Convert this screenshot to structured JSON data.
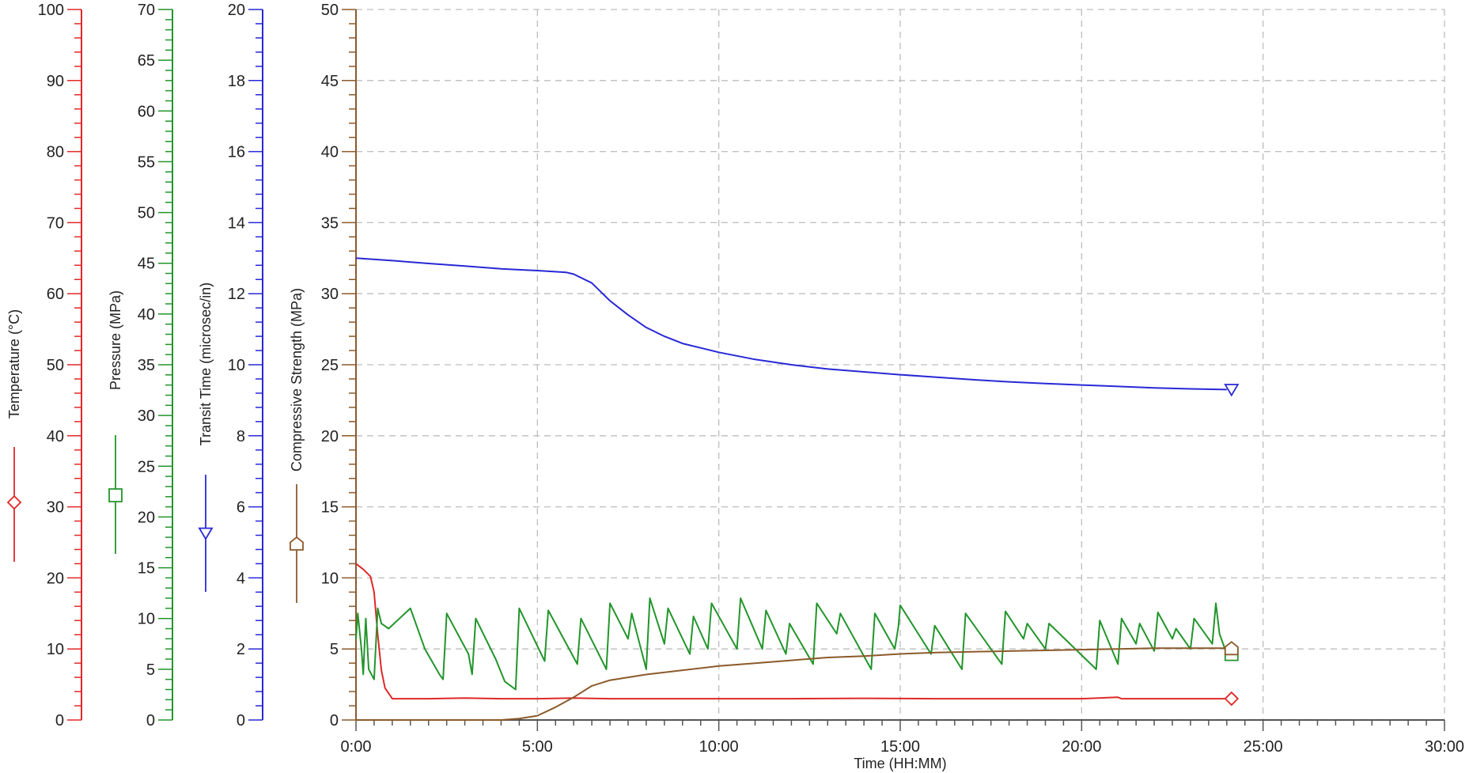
{
  "chart_data": {
    "type": "line",
    "title": "",
    "xlabel": "Time (HH:MM)",
    "x_unit": "hours",
    "xlim": [
      0,
      30
    ],
    "x_tick_labels": [
      "0:00",
      "5:00",
      "10:00",
      "15:00",
      "20:00",
      "25:00",
      "30:00"
    ],
    "grid": true,
    "legend": "left, vertical axis titles",
    "axes": [
      {
        "id": "temp",
        "title": "Temperature (°C)",
        "color": "#e02828",
        "marker": "diamond",
        "ylim": [
          0,
          100
        ],
        "tick_labels": [
          "0",
          "10",
          "20",
          "30",
          "40",
          "50",
          "60",
          "70",
          "80",
          "90",
          "100"
        ]
      },
      {
        "id": "press",
        "title": "Pressure (MPa)",
        "color": "#22952b",
        "marker": "square",
        "ylim": [
          0,
          70
        ],
        "tick_labels": [
          "0",
          "5",
          "10",
          "15",
          "20",
          "25",
          "30",
          "35",
          "40",
          "45",
          "50",
          "55",
          "60",
          "65",
          "70"
        ]
      },
      {
        "id": "transit",
        "title": "Transit Time (microsec/in)",
        "color": "#2828d6",
        "marker": "triangle-down",
        "ylim": [
          0,
          20
        ],
        "tick_labels": [
          "0",
          "2",
          "4",
          "6",
          "8",
          "10",
          "12",
          "14",
          "16",
          "18",
          "20"
        ]
      },
      {
        "id": "strength",
        "title": "Compressive Strength (MPa)",
        "color": "#8b5a2b",
        "marker": "pentagon",
        "ylim": [
          0,
          50
        ],
        "tick_labels": [
          "0",
          "5",
          "10",
          "15",
          "20",
          "25",
          "30",
          "35",
          "40",
          "45",
          "50"
        ]
      }
    ],
    "series": [
      {
        "axis": "transit",
        "color": "#2828d6",
        "points": [
          [
            0,
            13.0
          ],
          [
            1,
            12.93
          ],
          [
            2,
            12.85
          ],
          [
            3,
            12.78
          ],
          [
            4,
            12.7
          ],
          [
            5,
            12.65
          ],
          [
            5.8,
            12.6
          ],
          [
            6,
            12.55
          ],
          [
            6.5,
            12.3
          ],
          [
            7,
            11.8
          ],
          [
            7.5,
            11.4
          ],
          [
            8,
            11.05
          ],
          [
            8.5,
            10.8
          ],
          [
            9,
            10.6
          ],
          [
            10,
            10.35
          ],
          [
            11,
            10.15
          ],
          [
            12,
            10.0
          ],
          [
            13,
            9.88
          ],
          [
            14,
            9.8
          ],
          [
            15,
            9.72
          ],
          [
            16,
            9.65
          ],
          [
            17,
            9.58
          ],
          [
            18,
            9.52
          ],
          [
            19,
            9.47
          ],
          [
            20,
            9.43
          ],
          [
            21,
            9.39
          ],
          [
            22,
            9.35
          ],
          [
            23,
            9.32
          ],
          [
            24,
            9.3
          ]
        ]
      },
      {
        "axis": "temp",
        "color": "#e02828",
        "points": [
          [
            0,
            22
          ],
          [
            0.2,
            21.2
          ],
          [
            0.4,
            20.2
          ],
          [
            0.5,
            18
          ],
          [
            0.6,
            12
          ],
          [
            0.7,
            7
          ],
          [
            0.8,
            4.5
          ],
          [
            1,
            3
          ],
          [
            2,
            3
          ],
          [
            3,
            3.1
          ],
          [
            4,
            3
          ],
          [
            5,
            3
          ],
          [
            6,
            3.1
          ],
          [
            7,
            3
          ],
          [
            8,
            3
          ],
          [
            10,
            3
          ],
          [
            12,
            3
          ],
          [
            14,
            3.05
          ],
          [
            16,
            3
          ],
          [
            18,
            3
          ],
          [
            20,
            3
          ],
          [
            21,
            3.2
          ],
          [
            21.1,
            3
          ],
          [
            22,
            3
          ],
          [
            24,
            3
          ]
        ]
      },
      {
        "axis": "press",
        "color": "#22952b",
        "points": [
          [
            0,
            8
          ],
          [
            0.05,
            10.5
          ],
          [
            0.15,
            7
          ],
          [
            0.2,
            4.5
          ],
          [
            0.27,
            10
          ],
          [
            0.35,
            5
          ],
          [
            0.5,
            4
          ],
          [
            0.6,
            11
          ],
          [
            0.7,
            9.5
          ],
          [
            0.9,
            9
          ],
          [
            1.2,
            10
          ],
          [
            1.5,
            11
          ],
          [
            1.9,
            7
          ],
          [
            2.3,
            4.5
          ],
          [
            2.4,
            4
          ],
          [
            2.5,
            10.5
          ],
          [
            3.1,
            6.5
          ],
          [
            3.2,
            4.5
          ],
          [
            3.3,
            10
          ],
          [
            3.85,
            6
          ],
          [
            4.1,
            3.8
          ],
          [
            4.4,
            3
          ],
          [
            4.5,
            11
          ],
          [
            5.2,
            5.8
          ],
          [
            5.3,
            10.8
          ],
          [
            6.1,
            5.5
          ],
          [
            6.2,
            10
          ],
          [
            6.9,
            5
          ],
          [
            7.0,
            11.5
          ],
          [
            7.5,
            8
          ],
          [
            7.6,
            10.5
          ],
          [
            8.0,
            5
          ],
          [
            8.1,
            12
          ],
          [
            8.5,
            7.5
          ],
          [
            8.6,
            11
          ],
          [
            9.2,
            6.5
          ],
          [
            9.3,
            10.2
          ],
          [
            9.7,
            7
          ],
          [
            9.8,
            11.5
          ],
          [
            10.5,
            7
          ],
          [
            10.6,
            12
          ],
          [
            11.2,
            7
          ],
          [
            11.3,
            10.8
          ],
          [
            11.85,
            6.5
          ],
          [
            11.95,
            9.5
          ],
          [
            12.6,
            5.5
          ],
          [
            12.7,
            11.5
          ],
          [
            13.25,
            8.5
          ],
          [
            13.35,
            10.5
          ],
          [
            14.2,
            5
          ],
          [
            14.3,
            10.5
          ],
          [
            14.85,
            7
          ],
          [
            14.95,
            9.2
          ],
          [
            15.0,
            11.3
          ],
          [
            15.85,
            6.5
          ],
          [
            15.95,
            9.3
          ],
          [
            16.7,
            5
          ],
          [
            16.8,
            10.5
          ],
          [
            17.8,
            5.5
          ],
          [
            17.9,
            10.7
          ],
          [
            18.4,
            8
          ],
          [
            18.5,
            9.5
          ],
          [
            19.0,
            7
          ],
          [
            19.1,
            9.5
          ],
          [
            20.4,
            5
          ],
          [
            20.5,
            9.8
          ],
          [
            21.0,
            5.5
          ],
          [
            21.1,
            10
          ],
          [
            21.5,
            7.5
          ],
          [
            21.6,
            9.5
          ],
          [
            22.0,
            6.8
          ],
          [
            22.1,
            10.6
          ],
          [
            22.5,
            8
          ],
          [
            22.6,
            9
          ],
          [
            23.0,
            7
          ],
          [
            23.1,
            10
          ],
          [
            23.6,
            7.5
          ],
          [
            23.7,
            11.5
          ],
          [
            23.8,
            8.5
          ],
          [
            24,
            6.5
          ]
        ]
      },
      {
        "axis": "strength",
        "color": "#8b5a2b",
        "points": [
          [
            0,
            0
          ],
          [
            1,
            0
          ],
          [
            2,
            0
          ],
          [
            3,
            0
          ],
          [
            4,
            0
          ],
          [
            4.5,
            0.1
          ],
          [
            5,
            0.3
          ],
          [
            5.5,
            0.9
          ],
          [
            6,
            1.6
          ],
          [
            6.5,
            2.4
          ],
          [
            7,
            2.8
          ],
          [
            8,
            3.2
          ],
          [
            9,
            3.5
          ],
          [
            10,
            3.8
          ],
          [
            11,
            4.0
          ],
          [
            12,
            4.2
          ],
          [
            13,
            4.4
          ],
          [
            14,
            4.5
          ],
          [
            15,
            4.65
          ],
          [
            16,
            4.75
          ],
          [
            17,
            4.8
          ],
          [
            18,
            4.85
          ],
          [
            19,
            4.9
          ],
          [
            20,
            4.95
          ],
          [
            21,
            5.0
          ],
          [
            22,
            5.05
          ],
          [
            23,
            5.05
          ],
          [
            24,
            5.05
          ]
        ]
      }
    ]
  }
}
